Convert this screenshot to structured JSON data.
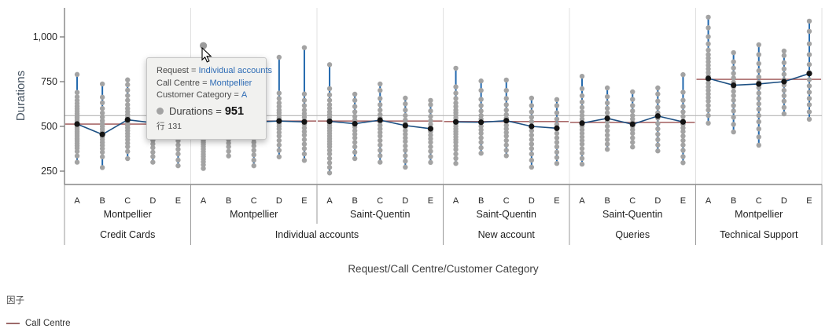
{
  "chart_data": {
    "type": "scatter",
    "variant": "variability-dot-plot",
    "title": "",
    "xlabel": "Request/Call Centre/Customer Category",
    "ylabel": "Durations",
    "ylim": [
      175,
      1160
    ],
    "grid": false,
    "y_ticks": [
      {
        "v": 250,
        "label": "250"
      },
      {
        "v": 500,
        "label": "500"
      },
      {
        "v": 750,
        "label": "750"
      },
      {
        "v": 1000,
        "label": "1,000"
      }
    ],
    "grand_mean": 560,
    "highlight": {
      "section": 1,
      "category": "A",
      "value": 951,
      "row": "131"
    },
    "sections": [
      {
        "request": "Credit Cards",
        "call_centre": "Montpellier",
        "factor_mean": 513,
        "categories": [
          {
            "label": "A",
            "mean": 513,
            "points": [
              300,
              335,
              360,
              378,
              392,
              405,
              418,
              430,
              442,
              452,
              462,
              472,
              482,
              492,
              502,
              512,
              522,
              532,
              542,
              552,
              562,
              572,
              585,
              598,
              612,
              628,
              645,
              665,
              690,
              790
            ]
          },
          {
            "label": "B",
            "mean": 455,
            "points": [
              270,
              330,
              356,
              376,
              394,
              410,
              426,
              441,
              456,
              470,
              485,
              500,
              515,
              532,
              552,
              575,
              600,
              632,
              663,
              737
            ]
          },
          {
            "label": "C",
            "mean": 537,
            "points": [
              320,
              360,
              386,
              406,
              426,
              444,
              460,
              476,
              491,
              506,
              521,
              536,
              551,
              566,
              582,
              600,
              621,
              646,
              672,
              702,
              733,
              760
            ]
          },
          {
            "label": "D",
            "mean": 520,
            "points": [
              300,
              331,
              356,
              381,
              402,
              422,
              442,
              462,
              482,
              502,
              522,
              542,
              562,
              583,
              606,
              632,
              660
            ]
          },
          {
            "label": "E",
            "mean": 515,
            "points": [
              280,
              312,
              346,
              372,
              396,
              420,
              441,
              461,
              481,
              501,
              516,
              531,
              551,
              571,
              591,
              616,
              650
            ]
          }
        ]
      },
      {
        "request": "Individual accounts",
        "call_centre": "Montpellier",
        "factor_mean": 530,
        "categories": [
          {
            "label": "A",
            "mean": 528,
            "points": [
              265,
              285,
              302,
              317,
              331,
              345,
              359,
              373,
              387,
              399,
              410,
              421,
              432,
              443,
              454,
              464,
              474,
              484,
              494,
              504,
              514,
              524,
              534,
              545,
              556,
              568,
              582,
              598,
              618,
              644,
              678,
              722,
              951
            ]
          },
          {
            "label": "B",
            "mean": 520,
            "points": [
              335,
              361,
              386,
              406,
              426,
              446,
              466,
              486,
              506,
              526,
              546,
              566,
              587,
              611,
              641,
              682,
              730
            ]
          },
          {
            "label": "C",
            "mean": 525,
            "points": [
              280,
              311,
              341,
              366,
              391,
              411,
              431,
              451,
              471,
              491,
              511,
              531,
              551,
              571,
              591,
              616,
              646,
              681,
              721,
              760
            ]
          },
          {
            "label": "D",
            "mean": 530,
            "points": [
              330,
              366,
              396,
              421,
              446,
              466,
              486,
              501,
              516,
              531,
              546,
              561,
              576,
              591,
              611,
              631,
              656,
              686,
              886
            ]
          },
          {
            "label": "E",
            "mean": 525,
            "points": [
              310,
              346,
              376,
              401,
              426,
              451,
              471,
              491,
              511,
              531,
              551,
              571,
              591,
              616,
              646,
              681,
              940
            ]
          }
        ]
      },
      {
        "request": "Individual accounts",
        "call_centre": "Saint-Quentin",
        "factor_mean": 530,
        "categories": [
          {
            "label": "A",
            "mean": 528,
            "points": [
              240,
              271,
              296,
              321,
              346,
              366,
              386,
              401,
              416,
              431,
              446,
              461,
              476,
              491,
              506,
              521,
              536,
              551,
              566,
              581,
              601,
              621,
              646,
              676,
              711,
              845
            ]
          },
          {
            "label": "B",
            "mean": 515,
            "points": [
              320,
              356,
              386,
              411,
              436,
              456,
              476,
              496,
              516,
              536,
              556,
              581,
              611,
              646,
              680
            ]
          },
          {
            "label": "C",
            "mean": 535,
            "points": [
              300,
              336,
              366,
              396,
              421,
              446,
              466,
              486,
              506,
              526,
              546,
              566,
              591,
              621,
              656,
              701,
              737
            ]
          },
          {
            "label": "D",
            "mean": 505,
            "points": [
              272,
              306,
              336,
              366,
              391,
              416,
              436,
              456,
              476,
              496,
              516,
              536,
              561,
              591,
              626,
              658
            ]
          },
          {
            "label": "E",
            "mean": 487,
            "points": [
              299,
              331,
              361,
              386,
              411,
              431,
              451,
              471,
              491,
              511,
              531,
              556,
              586,
              621,
              645
            ]
          }
        ]
      },
      {
        "request": "New account",
        "call_centre": "Saint-Quentin",
        "factor_mean": 527,
        "categories": [
          {
            "label": "A",
            "mean": 525,
            "points": [
              293,
              321,
              346,
              371,
              391,
              411,
              426,
              441,
              456,
              471,
              486,
              501,
              516,
              531,
              546,
              561,
              576,
              591,
              611,
              631,
              656,
              686,
              721,
              825
            ]
          },
          {
            "label": "B",
            "mean": 523,
            "points": [
              350,
              381,
              411,
              436,
              461,
              481,
              501,
              521,
              541,
              561,
              586,
              616,
              651,
              701,
              754
            ]
          },
          {
            "label": "C",
            "mean": 532,
            "points": [
              336,
              366,
              396,
              421,
              446,
              466,
              486,
              506,
              526,
              546,
              566,
              591,
              621,
              656,
              701,
              759
            ]
          },
          {
            "label": "D",
            "mean": 500,
            "points": [
              272,
              311,
              346,
              376,
              401,
              426,
              451,
              476,
              501,
              526,
              551,
              581,
              616,
              658
            ]
          },
          {
            "label": "E",
            "mean": 490,
            "points": [
              293,
              326,
              356,
              386,
              411,
              436,
              461,
              486,
              511,
              541,
              576,
              616,
              650
            ]
          }
        ]
      },
      {
        "request": "Queries",
        "call_centre": "Saint-Quentin",
        "factor_mean": 522,
        "categories": [
          {
            "label": "A",
            "mean": 518,
            "points": [
              289,
              321,
              351,
              376,
              401,
              421,
              441,
              461,
              481,
              501,
              521,
              541,
              561,
              581,
              606,
              636,
              671,
              711,
              780
            ]
          },
          {
            "label": "B",
            "mean": 545,
            "points": [
              372,
              401,
              426,
              451,
              476,
              501,
              526,
              551,
              576,
              601,
              631,
              666,
              715
            ]
          },
          {
            "label": "C",
            "mean": 512,
            "points": [
              385,
              411,
              436,
              461,
              481,
              501,
              521,
              541,
              561,
              586,
              616,
              651,
              693
            ]
          },
          {
            "label": "D",
            "mean": 558,
            "points": [
              363,
              396,
              426,
              456,
              486,
              516,
              546,
              576,
              606,
              641,
              681,
              715
            ]
          },
          {
            "label": "E",
            "mean": 525,
            "points": [
              297,
              331,
              366,
              396,
              421,
              446,
              471,
              491,
              511,
              531,
              556,
              581,
              611,
              646,
              691,
              789
            ]
          }
        ]
      },
      {
        "request": "Technical Support",
        "call_centre": "Montpellier",
        "factor_mean": 763,
        "categories": [
          {
            "label": "A",
            "mean": 768,
            "points": [
              518,
              561,
              591,
              616,
              641,
              661,
              681,
              701,
              721,
              741,
              761,
              781,
              801,
              821,
              841,
              861,
              881,
              901,
              926,
              961,
              1001,
              1051,
              1110
            ]
          },
          {
            "label": "B",
            "mean": 730,
            "points": [
              469,
              511,
              551,
              586,
              616,
              646,
              671,
              696,
              721,
              746,
              771,
              796,
              826,
              861,
              912
            ]
          },
          {
            "label": "C",
            "mean": 737,
            "points": [
              395,
              441,
              486,
              526,
              561,
              596,
              626,
              656,
              686,
              716,
              746,
              776,
              811,
              851,
              901,
              956
            ]
          },
          {
            "label": "D",
            "mean": 750,
            "points": [
              570,
              606,
              641,
              671,
              701,
              731,
              761,
              791,
              821,
              856,
              896,
              921
            ]
          },
          {
            "label": "E",
            "mean": 795,
            "points": [
              540,
              581,
              621,
              656,
              691,
              726,
              761,
              801,
              846,
              901,
              961,
              1031,
              1088
            ]
          }
        ]
      }
    ],
    "legend_position": "bottom-left"
  },
  "tooltip": {
    "rows": [
      {
        "label": "Request =",
        "value": "Individual accounts"
      },
      {
        "label": "Call Centre =",
        "value": "Montpellier"
      },
      {
        "label": "Customer Category =",
        "value": "A"
      }
    ],
    "measure": {
      "label": "Durations =",
      "value": "951"
    },
    "row_ref": {
      "prefix": "行",
      "value": "131"
    }
  },
  "legend": {
    "title": "因子",
    "items": [
      {
        "label": "Call Centre",
        "color": "#9d6a6a"
      }
    ]
  },
  "colors": {
    "range_line": "#2268ad",
    "mean_line": "#1c4f82",
    "point": "#a3a3a3",
    "hover_point": "#9b9b9b",
    "mean_point": "#141414",
    "factor_line": "#a96a6a",
    "grand_mean_line": "#b5b5b5",
    "separator": "#e0e0e0",
    "label_separator": "#9a9a9a",
    "axis": "#6e6e6e",
    "tick_text": "#262626",
    "tooltip_value": "#2e6cb5"
  }
}
